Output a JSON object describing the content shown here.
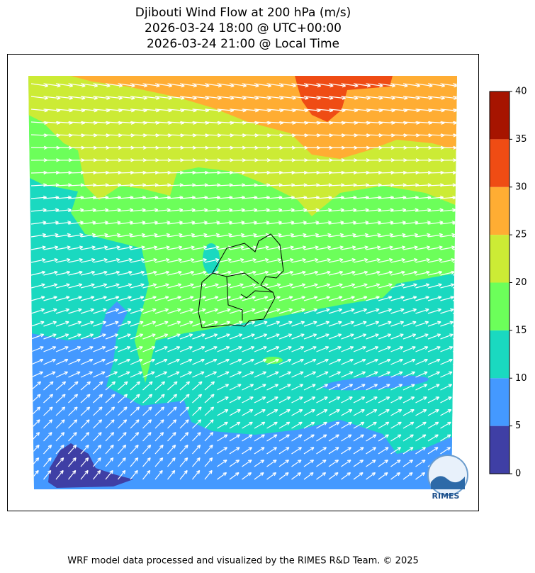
{
  "title": [
    "Djibouti Wind Flow at 200 hPa (m/s)",
    "2026-03-24 18:00 @ UTC+00:00",
    "2026-03-24 21:00 @ Local Time"
  ],
  "colorbar": {
    "lim": [
      0,
      40
    ],
    "ticks": [
      0,
      5,
      10,
      15,
      20,
      25,
      30,
      35,
      40
    ],
    "colors": [
      "#3f3fa5",
      "#4499ff",
      "#1ad9c0",
      "#6cff5a",
      "#cceb35",
      "#ffad33",
      "#ef4c14",
      "#a61400"
    ]
  },
  "logo": "RIMES",
  "footer": "WRF model data processed and visualized by the RIMES R&D Team. © 2025"
}
